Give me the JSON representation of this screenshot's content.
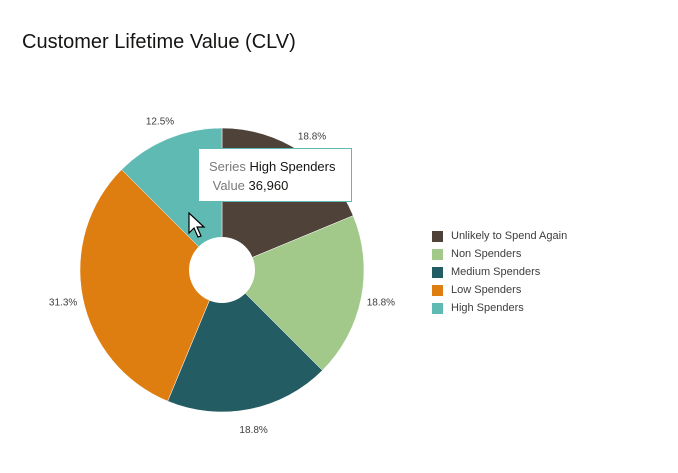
{
  "chart_data": {
    "type": "pie",
    "title": "Customer Lifetime Value (CLV)",
    "donut": true,
    "categories": [
      "Unlikely to Spend Again",
      "Non Spenders",
      "Medium Spenders",
      "Low Spenders",
      "High Spenders"
    ],
    "values": [
      18.75,
      18.75,
      18.75,
      31.25,
      12.5
    ],
    "data_labels": [
      "18.8%",
      "18.8%",
      "18.8%",
      "31.3%",
      "12.5%"
    ],
    "colors": [
      "#4e4239",
      "#a2c98a",
      "#245c63",
      "#df7e10",
      "#5fbab4"
    ],
    "legend_position": "right"
  },
  "tooltip": {
    "series_label": "Series",
    "series_value": "High Spenders",
    "value_label": "Value",
    "value": "36,960"
  }
}
